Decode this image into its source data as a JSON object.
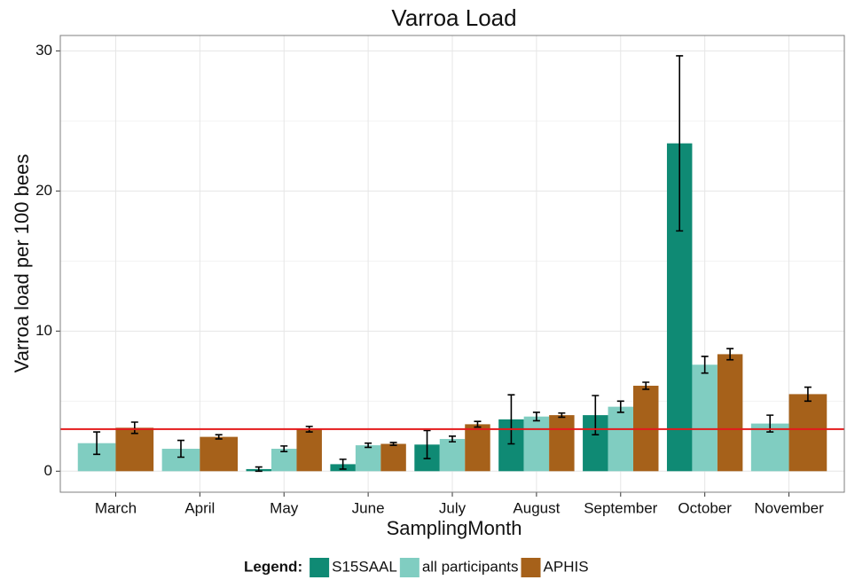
{
  "chart_data": {
    "type": "bar",
    "title": "Varroa Load",
    "x_label": "SamplingMonth",
    "y_label": "Varroa load per 100 bees",
    "categories": [
      "March",
      "April",
      "May",
      "June",
      "July",
      "August",
      "September",
      "October",
      "November"
    ],
    "series": [
      {
        "name": "S15SAAL",
        "color": "#0f8a74",
        "values": [
          null,
          null,
          0.15,
          0.5,
          1.9,
          3.7,
          4.0,
          23.4,
          null
        ],
        "errors": [
          null,
          null,
          0.15,
          0.35,
          1.0,
          1.75,
          1.4,
          6.25,
          null
        ]
      },
      {
        "name": "all participants",
        "color": "#80cdc1",
        "values": [
          2.0,
          1.6,
          1.6,
          1.85,
          2.3,
          3.9,
          4.6,
          7.6,
          3.4
        ],
        "errors": [
          0.8,
          0.6,
          0.2,
          0.15,
          0.2,
          0.3,
          0.4,
          0.6,
          0.6
        ]
      },
      {
        "name": "APHIS",
        "color": "#a6611a",
        "values": [
          3.1,
          2.45,
          3.0,
          1.95,
          3.35,
          4.0,
          6.1,
          8.35,
          5.5
        ],
        "errors": [
          0.4,
          0.15,
          0.2,
          0.1,
          0.2,
          0.15,
          0.25,
          0.4,
          0.5
        ]
      }
    ],
    "ylim": [
      -1.5,
      31.1
    ],
    "yticks": [
      0,
      10,
      20,
      30
    ],
    "minor_yticks": [
      5,
      15,
      25
    ],
    "grid": true,
    "reference_line": {
      "value": 3,
      "color": "#e41a1c"
    },
    "legend_title": "Legend:",
    "legend_position": "bottom"
  }
}
